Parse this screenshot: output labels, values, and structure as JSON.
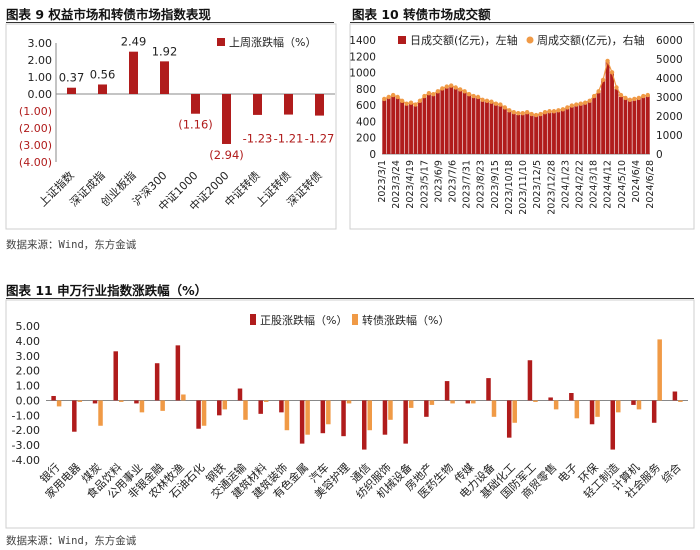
{
  "panels": {
    "fig9_title": "图表 9  权益市场和转债市场指数表现",
    "fig10_title": "图表 10  转债市场成交额",
    "fig11_title": "图表 11    申万行业指数涨跌幅（%）",
    "source_top": "数据来源：Wind，东方金诚",
    "source_bottom": "数据来源：Wind，东方金诚"
  },
  "colors": {
    "dark_red": "#b01c1c",
    "orange": "#f09a46",
    "gray": "#999999"
  },
  "chart_data": [
    {
      "id": "fig9",
      "type": "bar",
      "categories": [
        "上证指数",
        "深证成指",
        "创业板指",
        "沪深300",
        "中证1000",
        "中证2000",
        "中证转债",
        "上证转债",
        "深证转债"
      ],
      "series": [
        {
          "name": "上周涨跌幅（%）",
          "values": [
            0.37,
            0.56,
            2.49,
            1.92,
            -1.16,
            -2.94,
            -1.23,
            -1.21,
            -1.27
          ]
        }
      ],
      "data_labels": [
        "0.37",
        "0.56",
        "2.49",
        "1.92",
        "(1.16)",
        "(2.94)",
        "-1.23",
        "-1.21",
        "-1.27"
      ],
      "yticks": [
        "3.00",
        "2.00",
        "1.00",
        "0.00",
        "(1.00)",
        "(2.00)",
        "(3.00)",
        "(4.00)"
      ],
      "ylim": [
        -4,
        3
      ],
      "legend": "top-right"
    },
    {
      "id": "fig10",
      "type": "bar+line",
      "xticks": [
        "2023/3/1",
        "2023/3/24",
        "2023/4/19",
        "2023/5/17",
        "2023/6/9",
        "2023/7/6",
        "2023/7/31",
        "2023/8/23",
        "2023/9/15",
        "2023/10/18",
        "2023/11/10",
        "2023/12/5",
        "2023/12/28",
        "2024/1/23",
        "2024/2/22",
        "2024/3/18",
        "2024/4/12",
        "2024/5/10",
        "2024/6/4",
        "2024/6/28"
      ],
      "yticks_left": [
        "1400",
        "1200",
        "1000",
        "800",
        "600",
        "400",
        "200",
        "0"
      ],
      "yticks_right": [
        "6000",
        "5000",
        "4000",
        "3000",
        "2000",
        "1000",
        "0"
      ],
      "ylim_left": [
        0,
        1400
      ],
      "ylim_right": [
        0,
        6000
      ],
      "series": [
        {
          "name": "日成交额(亿元)，左轴",
          "values": [
            660,
            690,
            720,
            700,
            640,
            600,
            620,
            590,
            650,
            700,
            740,
            720,
            760,
            800,
            820,
            830,
            800,
            780,
            760,
            720,
            700,
            690,
            650,
            640,
            630,
            600,
            590,
            560,
            520,
            500,
            480,
            490,
            500,
            480,
            470,
            480,
            500,
            520,
            510,
            530,
            540,
            560,
            580,
            600,
            610,
            620,
            650,
            700,
            760,
            900,
            1150,
            1000,
            800,
            700,
            680,
            650,
            660,
            680,
            700,
            720
          ]
        },
        {
          "name": "周成交额(亿元)，右轴",
          "values": [
            2900,
            3000,
            3100,
            3000,
            2800,
            2650,
            2700,
            2600,
            2800,
            3050,
            3200,
            3150,
            3300,
            3450,
            3550,
            3600,
            3500,
            3400,
            3300,
            3150,
            3050,
            3000,
            2850,
            2800,
            2750,
            2650,
            2600,
            2450,
            2300,
            2200,
            2150,
            2150,
            2200,
            2100,
            2050,
            2100,
            2200,
            2250,
            2250,
            2300,
            2350,
            2450,
            2550,
            2600,
            2650,
            2700,
            2800,
            3050,
            3300,
            3900,
            4900,
            4300,
            3500,
            3100,
            2950,
            2850,
            2900,
            2950,
            3050,
            3100
          ]
        }
      ],
      "legend": "top"
    },
    {
      "id": "fig11",
      "type": "bar",
      "categories": [
        "银行",
        "家用电器",
        "煤炭",
        "食品饮料",
        "公用事业",
        "非银金融",
        "农林牧渔",
        "石油石化",
        "钢铁",
        "交通运输",
        "建筑材料",
        "建筑装饰",
        "有色金属",
        "汽车",
        "美容护理",
        "通信",
        "纺织服饰",
        "机械设备",
        "房地产",
        "医药生物",
        "传媒",
        "电力设备",
        "基础化工",
        "国防军工",
        "商贸零售",
        "电子",
        "环保",
        "轻工制造",
        "计算机",
        "社会服务",
        "综合"
      ],
      "series": [
        {
          "name": "正股涨跌幅（%）",
          "values": [
            0.3,
            -2.1,
            -0.2,
            3.3,
            -0.2,
            2.5,
            3.7,
            -1.9,
            -1.0,
            0.8,
            -0.9,
            -0.8,
            -2.9,
            -2.2,
            -2.4,
            -3.3,
            -2.3,
            -2.9,
            -1.1,
            1.3,
            -0.2,
            1.5,
            -2.5,
            2.7,
            0.2,
            0.5,
            -1.6,
            -3.3,
            -0.3,
            -1.5,
            0.6
          ]
        },
        {
          "name": "转债涨跌幅（%）",
          "values": [
            -0.4,
            -0.1,
            -1.7,
            -0.1,
            -0.8,
            -0.7,
            0.4,
            -1.7,
            -0.6,
            -1.3,
            -0.1,
            -2.0,
            -2.3,
            -1.6,
            -0.2,
            -2.0,
            -1.3,
            -0.5,
            -0.3,
            -0.2,
            -0.2,
            -1.1,
            -1.5,
            -0.1,
            -0.6,
            -1.2,
            -1.1,
            -0.8,
            -0.6,
            4.1,
            -0.1
          ]
        }
      ],
      "yticks": [
        "5.00",
        "4.00",
        "3.00",
        "2.00",
        "1.00",
        "0.00",
        "-1.00",
        "-2.00",
        "-3.00",
        "-4.00"
      ],
      "ylim": [
        -4,
        5
      ],
      "legend": "top"
    }
  ]
}
